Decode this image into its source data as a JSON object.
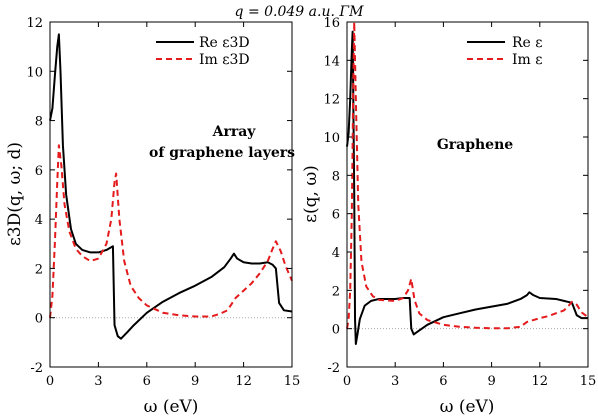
{
  "title": "q = 0.049 a.u. ΓM",
  "chart_data": [
    {
      "type": "line",
      "xlabel": "ω (eV)",
      "ylabel": "ε3D(q, ω; d)",
      "xlim": [
        0,
        15
      ],
      "ylim": [
        -2,
        12
      ],
      "xticks": [
        0,
        3,
        6,
        9,
        12,
        15
      ],
      "yticks": [
        -2,
        0,
        2,
        4,
        6,
        8,
        10,
        12
      ],
      "zero_line": true,
      "legend_position": "top-right",
      "annotation": [
        "Array",
        "of graphene layers"
      ],
      "series": [
        {
          "name": "Re ε3D",
          "color": "#000000",
          "dash": "solid",
          "points": [
            [
              0.0,
              8.0
            ],
            [
              0.15,
              8.5
            ],
            [
              0.3,
              9.8
            ],
            [
              0.45,
              11.0
            ],
            [
              0.55,
              11.5
            ],
            [
              0.65,
              10.0
            ],
            [
              0.8,
              7.0
            ],
            [
              1.0,
              5.0
            ],
            [
              1.3,
              3.6
            ],
            [
              1.6,
              3.0
            ],
            [
              2.0,
              2.75
            ],
            [
              2.5,
              2.65
            ],
            [
              3.0,
              2.65
            ],
            [
              3.5,
              2.75
            ],
            [
              3.9,
              2.9
            ],
            [
              4.0,
              -0.3
            ],
            [
              4.2,
              -0.75
            ],
            [
              4.4,
              -0.85
            ],
            [
              4.7,
              -0.65
            ],
            [
              5.2,
              -0.3
            ],
            [
              6.0,
              0.2
            ],
            [
              7.0,
              0.65
            ],
            [
              8.0,
              1.0
            ],
            [
              9.0,
              1.3
            ],
            [
              10.0,
              1.65
            ],
            [
              10.8,
              2.05
            ],
            [
              11.2,
              2.4
            ],
            [
              11.4,
              2.6
            ],
            [
              11.6,
              2.4
            ],
            [
              12.0,
              2.25
            ],
            [
              12.5,
              2.2
            ],
            [
              13.0,
              2.2
            ],
            [
              13.5,
              2.25
            ],
            [
              13.8,
              2.15
            ],
            [
              14.0,
              2.0
            ],
            [
              14.2,
              0.6
            ],
            [
              14.5,
              0.3
            ],
            [
              15.0,
              0.25
            ]
          ]
        },
        {
          "name": "Im ε3D",
          "color": "#e41a1c",
          "dash": "dashed",
          "points": [
            [
              0.0,
              0.0
            ],
            [
              0.15,
              0.9
            ],
            [
              0.3,
              3.0
            ],
            [
              0.45,
              5.5
            ],
            [
              0.55,
              7.0
            ],
            [
              0.7,
              6.2
            ],
            [
              0.9,
              4.6
            ],
            [
              1.2,
              3.5
            ],
            [
              1.6,
              2.8
            ],
            [
              2.0,
              2.5
            ],
            [
              2.5,
              2.3
            ],
            [
              3.0,
              2.4
            ],
            [
              3.5,
              3.0
            ],
            [
              3.8,
              4.0
            ],
            [
              4.0,
              5.5
            ],
            [
              4.1,
              5.85
            ],
            [
              4.3,
              4.0
            ],
            [
              4.6,
              2.3
            ],
            [
              5.0,
              1.3
            ],
            [
              5.5,
              0.8
            ],
            [
              6.0,
              0.5
            ],
            [
              7.0,
              0.2
            ],
            [
              8.0,
              0.1
            ],
            [
              9.0,
              0.05
            ],
            [
              10.0,
              0.05
            ],
            [
              10.5,
              0.15
            ],
            [
              11.0,
              0.3
            ],
            [
              11.5,
              0.8
            ],
            [
              12.0,
              1.1
            ],
            [
              12.5,
              1.4
            ],
            [
              13.0,
              1.8
            ],
            [
              13.5,
              2.3
            ],
            [
              13.8,
              2.8
            ],
            [
              14.0,
              3.1
            ],
            [
              14.3,
              2.7
            ],
            [
              14.6,
              2.1
            ],
            [
              15.0,
              1.5
            ]
          ]
        }
      ]
    },
    {
      "type": "line",
      "xlabel": "ω (eV)",
      "ylabel": "ε(q, ω)",
      "xlim": [
        0,
        15
      ],
      "ylim": [
        -2,
        16
      ],
      "xticks": [
        0,
        3,
        6,
        9,
        12,
        15
      ],
      "yticks": [
        -2,
        0,
        2,
        4,
        6,
        8,
        10,
        12,
        14,
        16
      ],
      "zero_line": true,
      "legend_position": "top-right",
      "annotation": [
        "Graphene"
      ],
      "series": [
        {
          "name": "Re ε",
          "color": "#000000",
          "dash": "solid",
          "points": [
            [
              0.0,
              9.5
            ],
            [
              0.1,
              10.2
            ],
            [
              0.2,
              12.0
            ],
            [
              0.3,
              14.5
            ],
            [
              0.35,
              15.5
            ],
            [
              0.45,
              7.0
            ],
            [
              0.5,
              0.5
            ],
            [
              0.55,
              -0.8
            ],
            [
              0.65,
              -0.3
            ],
            [
              0.8,
              0.5
            ],
            [
              1.1,
              1.2
            ],
            [
              1.5,
              1.45
            ],
            [
              2.0,
              1.55
            ],
            [
              3.0,
              1.55
            ],
            [
              3.5,
              1.6
            ],
            [
              3.9,
              1.6
            ],
            [
              4.0,
              0.0
            ],
            [
              4.15,
              -0.3
            ],
            [
              4.4,
              -0.15
            ],
            [
              5.0,
              0.2
            ],
            [
              6.0,
              0.6
            ],
            [
              7.0,
              0.8
            ],
            [
              8.0,
              1.0
            ],
            [
              9.0,
              1.15
            ],
            [
              10.0,
              1.3
            ],
            [
              10.8,
              1.55
            ],
            [
              11.2,
              1.75
            ],
            [
              11.35,
              1.9
            ],
            [
              11.6,
              1.75
            ],
            [
              12.0,
              1.6
            ],
            [
              13.0,
              1.55
            ],
            [
              13.5,
              1.45
            ],
            [
              14.0,
              1.35
            ],
            [
              14.3,
              0.7
            ],
            [
              14.6,
              0.55
            ],
            [
              15.0,
              0.55
            ]
          ]
        },
        {
          "name": "Im ε",
          "color": "#e41a1c",
          "dash": "dashed",
          "points": [
            [
              0.0,
              0.0
            ],
            [
              0.1,
              0.5
            ],
            [
              0.2,
              2.0
            ],
            [
              0.3,
              6.0
            ],
            [
              0.38,
              12.0
            ],
            [
              0.45,
              16.0
            ],
            [
              0.55,
              12.0
            ],
            [
              0.7,
              6.5
            ],
            [
              0.9,
              3.5
            ],
            [
              1.2,
              2.2
            ],
            [
              1.6,
              1.7
            ],
            [
              2.0,
              1.5
            ],
            [
              3.0,
              1.45
            ],
            [
              3.5,
              1.6
            ],
            [
              3.8,
              2.0
            ],
            [
              4.0,
              2.6
            ],
            [
              4.2,
              1.5
            ],
            [
              4.5,
              0.8
            ],
            [
              5.0,
              0.45
            ],
            [
              6.0,
              0.2
            ],
            [
              7.0,
              0.1
            ],
            [
              8.0,
              0.05
            ],
            [
              9.0,
              0.02
            ],
            [
              10.0,
              0.02
            ],
            [
              10.8,
              0.1
            ],
            [
              11.2,
              0.35
            ],
            [
              11.6,
              0.45
            ],
            [
              12.0,
              0.55
            ],
            [
              12.5,
              0.65
            ],
            [
              13.0,
              0.8
            ],
            [
              13.5,
              0.95
            ],
            [
              13.8,
              1.2
            ],
            [
              14.0,
              1.4
            ],
            [
              14.3,
              1.25
            ],
            [
              14.6,
              0.85
            ],
            [
              15.0,
              0.6
            ]
          ]
        }
      ]
    }
  ]
}
